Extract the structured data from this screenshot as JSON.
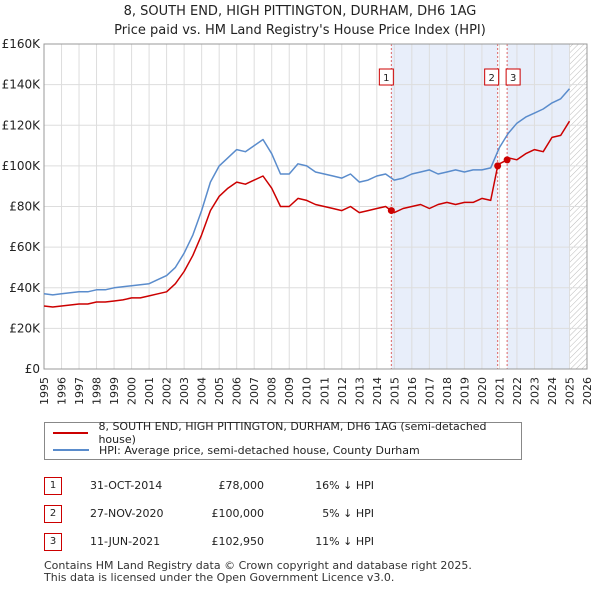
{
  "title_line1": "8, SOUTH END, HIGH PITTINGTON, DURHAM, DH6 1AG",
  "title_line2": "Price paid vs. HM Land Registry's House Price Index (HPI)",
  "colors": {
    "price_line": "#cc0000",
    "hpi_line": "#5a8ccc",
    "shade": "#e8eefa",
    "hatch": "#bbbbbb"
  },
  "chart_data": {
    "type": "line",
    "xlim": [
      1995,
      2026
    ],
    "ylim": [
      0,
      160000
    ],
    "x_ticks": [
      1995,
      1996,
      1997,
      1998,
      1999,
      2000,
      2001,
      2002,
      2003,
      2004,
      2005,
      2006,
      2007,
      2008,
      2009,
      2010,
      2011,
      2012,
      2013,
      2014,
      2015,
      2016,
      2017,
      2018,
      2019,
      2020,
      2021,
      2022,
      2023,
      2024,
      2025,
      2026
    ],
    "y_ticks": [
      {
        "value": 0,
        "label": "£0"
      },
      {
        "value": 20000,
        "label": "£20K"
      },
      {
        "value": 40000,
        "label": "£40K"
      },
      {
        "value": 60000,
        "label": "£60K"
      },
      {
        "value": 80000,
        "label": "£80K"
      },
      {
        "value": 100000,
        "label": "£100K"
      },
      {
        "value": 120000,
        "label": "£120K"
      },
      {
        "value": 140000,
        "label": "£140K"
      },
      {
        "value": 160000,
        "label": "£160K"
      }
    ],
    "shaded_ranges": [
      [
        2014.83,
        2020.9
      ],
      [
        2021.44,
        2025.0
      ]
    ],
    "hatched_after": 2025.0,
    "series": [
      {
        "name": "8, SOUTH END, HIGH PITTINGTON, DURHAM, DH6 1AG (semi-detached house)",
        "color": "#cc0000",
        "x": [
          1995,
          1995.5,
          1996,
          1996.5,
          1997,
          1997.5,
          1998,
          1998.5,
          1999,
          1999.5,
          2000,
          2000.5,
          2001,
          2001.5,
          2002,
          2002.5,
          2003,
          2003.5,
          2004,
          2004.5,
          2005,
          2005.5,
          2006,
          2006.5,
          2007,
          2007.5,
          2008,
          2008.5,
          2009,
          2009.5,
          2010,
          2010.5,
          2011,
          2011.5,
          2012,
          2012.5,
          2013,
          2013.5,
          2014,
          2014.5,
          2014.83,
          2015,
          2015.5,
          2016,
          2016.5,
          2017,
          2017.5,
          2018,
          2018.5,
          2019,
          2019.5,
          2020,
          2020.5,
          2020.9,
          2021,
          2021.44,
          2021.5,
          2022,
          2022.5,
          2023,
          2023.5,
          2024,
          2024.5,
          2025
        ],
        "y": [
          31000,
          30500,
          31000,
          31500,
          32000,
          32000,
          33000,
          33000,
          33500,
          34000,
          35000,
          35000,
          36000,
          37000,
          38000,
          42000,
          48000,
          56000,
          66000,
          78000,
          85000,
          89000,
          92000,
          91000,
          93000,
          95000,
          89000,
          80000,
          80000,
          84000,
          83000,
          81000,
          80000,
          79000,
          78000,
          80000,
          77000,
          78000,
          79000,
          80000,
          78000,
          77000,
          79000,
          80000,
          81000,
          79000,
          81000,
          82000,
          81000,
          82000,
          82000,
          84000,
          83000,
          100000,
          101000,
          102950,
          104000,
          103000,
          106000,
          108000,
          107000,
          114000,
          115000,
          122000
        ]
      },
      {
        "name": "HPI: Average price, semi-detached house, County Durham",
        "color": "#5a8ccc",
        "x": [
          1995,
          1995.5,
          1996,
          1996.5,
          1997,
          1997.5,
          1998,
          1998.5,
          1999,
          1999.5,
          2000,
          2000.5,
          2001,
          2001.5,
          2002,
          2002.5,
          2003,
          2003.5,
          2004,
          2004.5,
          2005,
          2005.5,
          2006,
          2006.5,
          2007,
          2007.5,
          2008,
          2008.5,
          2009,
          2009.5,
          2010,
          2010.5,
          2011,
          2011.5,
          2012,
          2012.5,
          2013,
          2013.5,
          2014,
          2014.5,
          2015,
          2015.5,
          2016,
          2016.5,
          2017,
          2017.5,
          2018,
          2018.5,
          2019,
          2019.5,
          2020,
          2020.5,
          2021,
          2021.5,
          2022,
          2022.5,
          2023,
          2023.5,
          2024,
          2024.5,
          2025
        ],
        "y": [
          37000,
          36500,
          37000,
          37500,
          38000,
          38000,
          39000,
          39000,
          40000,
          40500,
          41000,
          41500,
          42000,
          44000,
          46000,
          50000,
          57000,
          66000,
          78000,
          92000,
          100000,
          104000,
          108000,
          107000,
          110000,
          113000,
          106000,
          96000,
          96000,
          101000,
          100000,
          97000,
          96000,
          95000,
          94000,
          96000,
          92000,
          93000,
          95000,
          96000,
          93000,
          94000,
          96000,
          97000,
          98000,
          96000,
          97000,
          98000,
          97000,
          98000,
          98000,
          99000,
          109000,
          116000,
          121000,
          124000,
          126000,
          128000,
          131000,
          133000,
          138000
        ]
      }
    ],
    "sales": [
      {
        "label": "1",
        "date": "31-OCT-2014",
        "x": 2014.83,
        "price_value": 78000,
        "price": "£78,000",
        "hpi": "16% ↓ HPI"
      },
      {
        "label": "2",
        "date": "27-NOV-2020",
        "x": 2020.9,
        "price_value": 100000,
        "price": "£100,000",
        "hpi": "5% ↓ HPI"
      },
      {
        "label": "3",
        "date": "11-JUN-2021",
        "x": 2021.44,
        "price_value": 102950,
        "price": "£102,950",
        "hpi": "11% ↓ HPI"
      }
    ]
  },
  "legend": {
    "property": "8, SOUTH END, HIGH PITTINGTON, DURHAM, DH6 1AG (semi-detached house)",
    "hpi": "HPI: Average price, semi-detached house, County Durham"
  },
  "footer": {
    "line1": "Contains HM Land Registry data © Crown copyright and database right 2025.",
    "line2": "This data is licensed under the Open Government Licence v3.0."
  }
}
